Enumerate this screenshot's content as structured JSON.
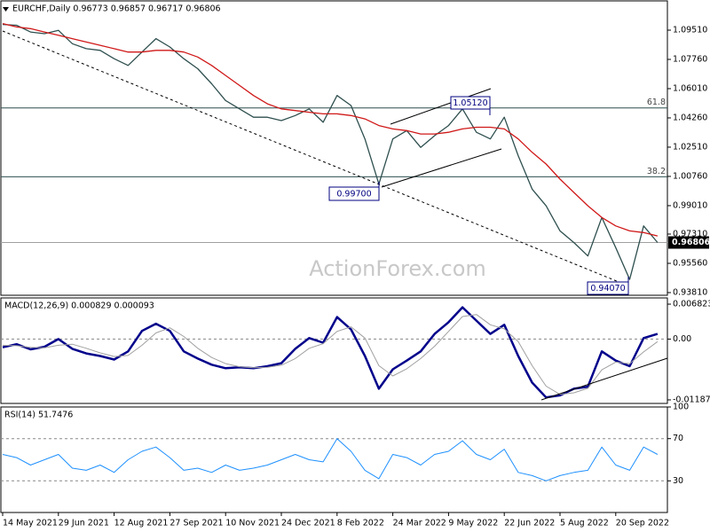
{
  "chart_data": [
    {
      "type": "line",
      "title": "EURCHF,Daily  0.96773 0.96857 0.96717 0.96806",
      "ylim": [
        0.9365,
        1.1126
      ],
      "yticks": [
        {
          "value": 1.0951,
          "label": "1.09510"
        },
        {
          "value": 1.0776,
          "label": "1.07760"
        },
        {
          "value": 1.0601,
          "label": "1.06010"
        },
        {
          "value": 1.0426,
          "label": "1.04260"
        },
        {
          "value": 1.0251,
          "label": "1.02510"
        },
        {
          "value": 1.0076,
          "label": "1.00760"
        },
        {
          "value": 0.9901,
          "label": "0.99010"
        },
        {
          "value": 0.9731,
          "label": "0.97310"
        },
        {
          "value": 0.9556,
          "label": "0.95560"
        },
        {
          "value": 0.9381,
          "label": "0.93810"
        }
      ],
      "grid": false,
      "series": [
        {
          "name": "EURCHF",
          "color": "#2f4f4f",
          "values": [
            1.0985,
            1.098,
            1.094,
            1.093,
            1.095,
            1.087,
            1.084,
            1.083,
            1.078,
            1.074,
            1.082,
            1.09,
            1.085,
            1.078,
            1.072,
            1.063,
            1.053,
            1.048,
            1.043,
            1.043,
            1.041,
            1.044,
            1.048,
            1.04,
            1.056,
            1.05,
            1.03,
            1.003,
            1.03,
            1.035,
            1.025,
            1.032,
            1.038,
            1.048,
            1.034,
            1.03,
            1.043,
            1.02,
            1.0,
            0.99,
            0.975,
            0.968,
            0.96,
            0.983,
            0.965,
            0.946,
            0.978,
            0.96806
          ]
        },
        {
          "name": "MA",
          "color": "#d01818",
          "values": [
            1.099,
            1.097,
            1.096,
            1.094,
            1.092,
            1.09,
            1.088,
            1.086,
            1.084,
            1.082,
            1.082,
            1.083,
            1.083,
            1.082,
            1.079,
            1.074,
            1.068,
            1.062,
            1.056,
            1.051,
            1.048,
            1.047,
            1.046,
            1.045,
            1.045,
            1.044,
            1.042,
            1.038,
            1.036,
            1.035,
            1.033,
            1.033,
            1.034,
            1.036,
            1.037,
            1.037,
            1.036,
            1.03,
            1.022,
            1.015,
            1.006,
            0.998,
            0.99,
            0.983,
            0.978,
            0.975,
            0.974,
            0.972
          ]
        }
      ],
      "levels": [
        {
          "value": 1.04856,
          "label": "61.8"
        },
        {
          "value": 1.00735,
          "label": "38.2"
        }
      ],
      "last_price": {
        "value": 0.96806,
        "label": "0.96806"
      },
      "annotations": [
        "0.99700",
        "1.05120",
        "0.94070"
      ],
      "watermark": "ActionForex.com"
    },
    {
      "type": "line",
      "title": "MACD(12,26,9) 0.000829 0.000093",
      "ylim": [
        -0.01257,
        0.00804
      ],
      "yticks": [
        0.006823,
        {
          "value": 0,
          "label": "0.00"
        },
        -0.011874
      ],
      "zero_line": true,
      "series": [
        {
          "name": "MACD",
          "color": "#00008b",
          "width": 2.5,
          "values": [
            -0.0016,
            -0.001,
            -0.002,
            -0.0015,
            0,
            -0.0019,
            -0.0028,
            -0.0033,
            -0.004,
            -0.0024,
            0.0016,
            0.003,
            0.0016,
            -0.0024,
            -0.0038,
            -0.005,
            -0.0057,
            -0.0055,
            -0.0057,
            -0.0053,
            -0.0047,
            -0.0019,
            0.0002,
            -0.0007,
            0.0043,
            0.0019,
            -0.0033,
            -0.0097,
            -0.0059,
            -0.0042,
            -0.0024,
            0.001,
            0.0033,
            0.0062,
            0.0036,
            0.001,
            0.0028,
            -0.0033,
            -0.0085,
            -0.0114,
            -0.011,
            -0.0097,
            -0.0093,
            -0.0024,
            -0.0042,
            -0.0053,
            0.0002,
            0.001
          ]
        },
        {
          "name": "Signal",
          "color": "#a0a0a0",
          "width": 1,
          "values": [
            -0.0012,
            -0.0013,
            -0.0016,
            -0.0017,
            -0.0012,
            -0.001,
            -0.0018,
            -0.0027,
            -0.0034,
            -0.0032,
            -0.0012,
            0.0012,
            0.0022,
            0.0005,
            -0.0018,
            -0.0036,
            -0.0048,
            -0.0054,
            -0.0056,
            -0.0055,
            -0.0051,
            -0.0038,
            -0.0018,
            -0.0009,
            0.0015,
            0.0024,
            0.0002,
            -0.0052,
            -0.0072,
            -0.0058,
            -0.0038,
            -0.0014,
            0.0015,
            0.0044,
            0.0048,
            0.0028,
            0.002,
            -0.0005,
            -0.0052,
            -0.0092,
            -0.0108,
            -0.0105,
            -0.0096,
            -0.006,
            -0.0045,
            -0.0048,
            -0.0025,
            -0.0005
          ]
        }
      ]
    },
    {
      "type": "line",
      "title": "RSI(14) 51.7476",
      "ylim": [
        0,
        100
      ],
      "yticks": [
        100,
        70,
        30
      ],
      "grid": true,
      "series": [
        {
          "name": "RSI",
          "color": "#1e90ff",
          "width": 1,
          "values": [
            55,
            52,
            45,
            50,
            55,
            42,
            40,
            45,
            38,
            50,
            58,
            62,
            52,
            40,
            42,
            38,
            45,
            40,
            42,
            45,
            50,
            55,
            50,
            48,
            70,
            58,
            40,
            32,
            55,
            52,
            45,
            55,
            58,
            68,
            55,
            50,
            60,
            38,
            35,
            30,
            35,
            38,
            40,
            62,
            45,
            40,
            62,
            55
          ]
        }
      ],
      "categories": [
        "14 May 2021",
        null,
        null,
        null,
        "29 Jun 2021",
        null,
        null,
        null,
        "12 Aug 2021",
        null,
        null,
        null,
        "27 Sep 2021",
        null,
        null,
        null,
        "10 Nov 2021",
        null,
        null,
        null,
        "24 Dec 2021",
        null,
        null,
        null,
        "8 Feb 2022",
        null,
        null,
        null,
        "24 Mar 2022",
        null,
        null,
        null,
        "9 May 2022",
        null,
        null,
        null,
        "22 Jun 2022",
        null,
        null,
        null,
        "5 Aug 2022",
        null,
        null,
        null,
        "20 Sep 2022",
        null,
        null,
        null
      ]
    }
  ]
}
